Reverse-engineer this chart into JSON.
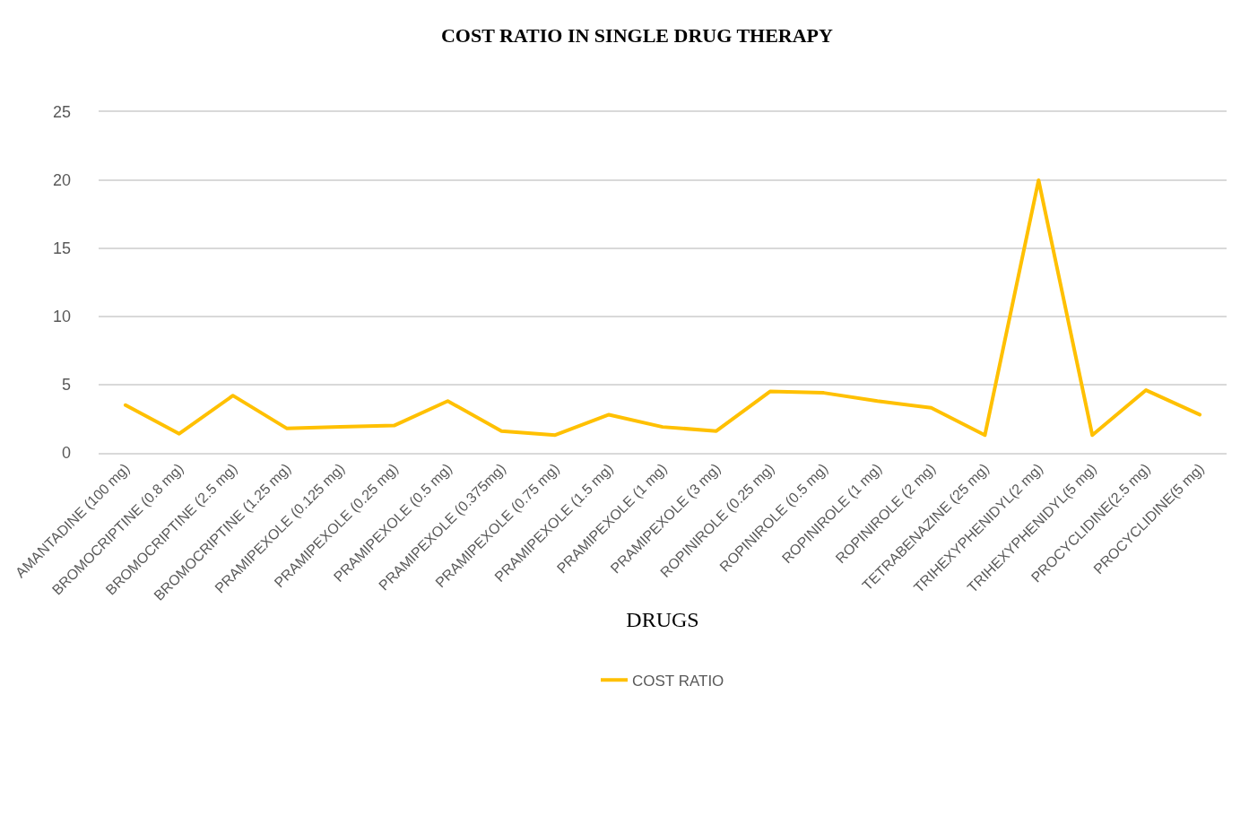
{
  "chart_data": {
    "type": "line",
    "title": "COST RATIO IN SINGLE DRUG THERAPY",
    "xlabel": "DRUGS",
    "categories": [
      "AMANTADINE (100 mg)",
      "BROMOCRIPTINE (0.8 mg)",
      "BROMOCRIPTINE (2.5 mg)",
      "BROMOCRIPTINE (1.25 mg)",
      "PRAMIPEXOLE (0.125 mg)",
      "PRAMIPEXOLE (0.25 mg)",
      "PRAMIPEXOLE (0.5 mg)",
      "PRAMIPEXOLE (0.375mg)",
      "PRAMIPEXOLE (0.75 mg)",
      "PRAMIPEXOLE (1.5 mg)",
      "PRAMIPEXOLE (1 mg)",
      "PRAMIPEXOLE (3 mg)",
      "ROPINIROLE (0.25 mg)",
      "ROPINIROLE (0.5 mg)",
      "ROPINIROLE (1 mg)",
      "ROPINIROLE (2 mg)",
      "TETRABENAZINE (25 mg)",
      "TRIHEXYPHENIDYL(2 mg)",
      "TRIHEXYPHENIDYL(5 mg)",
      "PROCYCLIDINE(2.5 mg)",
      "PROCYCLIDINE(5 mg)"
    ],
    "series": [
      {
        "name": "COST RATIO",
        "color": "#ffc000",
        "values": [
          3.5,
          1.4,
          4.2,
          1.8,
          1.9,
          2.0,
          3.8,
          1.6,
          1.3,
          2.8,
          1.9,
          1.6,
          4.5,
          4.4,
          3.8,
          3.3,
          1.3,
          20,
          1.3,
          4.6,
          2.8
        ]
      }
    ],
    "ylim": [
      0,
      25
    ],
    "yticks": [
      0,
      5,
      10,
      15,
      20,
      25
    ],
    "grid": "y",
    "legend": "bottom",
    "marker": "none",
    "line_style": "solid"
  }
}
